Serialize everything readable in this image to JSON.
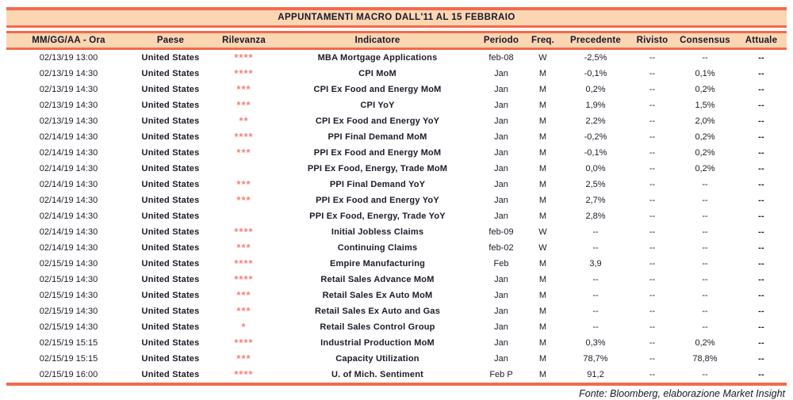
{
  "title": "APPUNTAMENTI MACRO DALL'11 AL 15 FEBBRAIO",
  "footer": "Fonte: Bloomberg, elaborazione Market Insight",
  "colors": {
    "accent_line": "#f4694c",
    "band_background": "#fbd6b2",
    "stars": "#f2837b",
    "text": "#17172b"
  },
  "table": {
    "columns": [
      {
        "key": "date",
        "label": "MM/GG/AA - Ora"
      },
      {
        "key": "paese",
        "label": "Paese"
      },
      {
        "key": "rilevanza",
        "label": "Rilevanza"
      },
      {
        "key": "indicatore",
        "label": "Indicatore"
      },
      {
        "key": "periodo",
        "label": "Periodo"
      },
      {
        "key": "freq",
        "label": "Freq."
      },
      {
        "key": "precedente",
        "label": "Precedente"
      },
      {
        "key": "rivisto",
        "label": "Rivisto"
      },
      {
        "key": "consensus",
        "label": "Consensus"
      },
      {
        "key": "attuale",
        "label": "Attuale"
      }
    ],
    "rows": [
      {
        "date": "02/13/19 13:00",
        "paese": "United States",
        "rilevanza": "****",
        "indicatore": "MBA Mortgage Applications",
        "periodo": "feb-08",
        "freq": "W",
        "precedente": "-2,5%",
        "rivisto": "--",
        "consensus": "--",
        "attuale": "--"
      },
      {
        "date": "02/13/19 14:30",
        "paese": "United States",
        "rilevanza": "****",
        "indicatore": "CPI MoM",
        "periodo": "Jan",
        "freq": "M",
        "precedente": "-0,1%",
        "rivisto": "--",
        "consensus": "0,1%",
        "attuale": "--"
      },
      {
        "date": "02/13/19 14:30",
        "paese": "United States",
        "rilevanza": "***",
        "indicatore": "CPI Ex Food and Energy MoM",
        "periodo": "Jan",
        "freq": "M",
        "precedente": "0,2%",
        "rivisto": "--",
        "consensus": "0,2%",
        "attuale": "--"
      },
      {
        "date": "02/13/19 14:30",
        "paese": "United States",
        "rilevanza": "***",
        "indicatore": "CPI YoY",
        "periodo": "Jan",
        "freq": "M",
        "precedente": "1,9%",
        "rivisto": "--",
        "consensus": "1,5%",
        "attuale": "--"
      },
      {
        "date": "02/13/19 14:30",
        "paese": "United States",
        "rilevanza": "**",
        "indicatore": "CPI Ex Food and Energy YoY",
        "periodo": "Jan",
        "freq": "M",
        "precedente": "2,2%",
        "rivisto": "--",
        "consensus": "2,0%",
        "attuale": "--"
      },
      {
        "date": "02/14/19 14:30",
        "paese": "United States",
        "rilevanza": "****",
        "indicatore": "PPI Final Demand MoM",
        "periodo": "Jan",
        "freq": "M",
        "precedente": "-0,2%",
        "rivisto": "--",
        "consensus": "0,2%",
        "attuale": "--"
      },
      {
        "date": "02/14/19 14:30",
        "paese": "United States",
        "rilevanza": "***",
        "indicatore": "PPI Ex Food and Energy MoM",
        "periodo": "Jan",
        "freq": "M",
        "precedente": "-0,1%",
        "rivisto": "--",
        "consensus": "0,2%",
        "attuale": "--"
      },
      {
        "date": "02/14/19 14:30",
        "paese": "United States",
        "rilevanza": "",
        "indicatore": "PPI Ex Food, Energy, Trade MoM",
        "periodo": "Jan",
        "freq": "M",
        "precedente": "0,0%",
        "rivisto": "--",
        "consensus": "0,2%",
        "attuale": "--"
      },
      {
        "date": "02/14/19 14:30",
        "paese": "United States",
        "rilevanza": "***",
        "indicatore": "PPI Final Demand YoY",
        "periodo": "Jan",
        "freq": "M",
        "precedente": "2,5%",
        "rivisto": "--",
        "consensus": "--",
        "attuale": "--"
      },
      {
        "date": "02/14/19 14:30",
        "paese": "United States",
        "rilevanza": "***",
        "indicatore": "PPI Ex Food and Energy YoY",
        "periodo": "Jan",
        "freq": "M",
        "precedente": "2,7%",
        "rivisto": "--",
        "consensus": "--",
        "attuale": "--"
      },
      {
        "date": "02/14/19 14:30",
        "paese": "United States",
        "rilevanza": "",
        "indicatore": "PPI Ex Food, Energy, Trade YoY",
        "periodo": "Jan",
        "freq": "M",
        "precedente": "2,8%",
        "rivisto": "--",
        "consensus": "--",
        "attuale": "--"
      },
      {
        "date": "02/14/19 14:30",
        "paese": "United States",
        "rilevanza": "****",
        "indicatore": "Initial Jobless Claims",
        "periodo": "feb-09",
        "freq": "W",
        "precedente": "--",
        "rivisto": "--",
        "consensus": "--",
        "attuale": "--"
      },
      {
        "date": "02/14/19 14:30",
        "paese": "United States",
        "rilevanza": "***",
        "indicatore": "Continuing Claims",
        "periodo": "feb-02",
        "freq": "W",
        "precedente": "--",
        "rivisto": "--",
        "consensus": "--",
        "attuale": "--"
      },
      {
        "date": "02/15/19 14:30",
        "paese": "United States",
        "rilevanza": "****",
        "indicatore": "Empire Manufacturing",
        "periodo": "Feb",
        "freq": "M",
        "precedente": "3,9",
        "rivisto": "--",
        "consensus": "--",
        "attuale": "--"
      },
      {
        "date": "02/15/19 14:30",
        "paese": "United States",
        "rilevanza": "****",
        "indicatore": "Retail Sales Advance MoM",
        "periodo": "Jan",
        "freq": "M",
        "precedente": "--",
        "rivisto": "--",
        "consensus": "--",
        "attuale": "--"
      },
      {
        "date": "02/15/19 14:30",
        "paese": "United States",
        "rilevanza": "***",
        "indicatore": "Retail Sales Ex Auto MoM",
        "periodo": "Jan",
        "freq": "M",
        "precedente": "--",
        "rivisto": "--",
        "consensus": "--",
        "attuale": "--"
      },
      {
        "date": "02/15/19 14:30",
        "paese": "United States",
        "rilevanza": "***",
        "indicatore": "Retail Sales Ex Auto and Gas",
        "periodo": "Jan",
        "freq": "M",
        "precedente": "--",
        "rivisto": "--",
        "consensus": "--",
        "attuale": "--"
      },
      {
        "date": "02/15/19 14:30",
        "paese": "United States",
        "rilevanza": "*",
        "indicatore": "Retail Sales Control Group",
        "periodo": "Jan",
        "freq": "M",
        "precedente": "--",
        "rivisto": "--",
        "consensus": "--",
        "attuale": "--"
      },
      {
        "date": "02/15/19 15:15",
        "paese": "United States",
        "rilevanza": "****",
        "indicatore": "Industrial Production MoM",
        "periodo": "Jan",
        "freq": "M",
        "precedente": "0,3%",
        "rivisto": "--",
        "consensus": "0,2%",
        "attuale": "--"
      },
      {
        "date": "02/15/19 15:15",
        "paese": "United States",
        "rilevanza": "***",
        "indicatore": "Capacity Utilization",
        "periodo": "Jan",
        "freq": "M",
        "precedente": "78,7%",
        "rivisto": "--",
        "consensus": "78,8%",
        "attuale": "--"
      },
      {
        "date": "02/15/19 16:00",
        "paese": "United States",
        "rilevanza": "****",
        "indicatore": "U. of Mich. Sentiment",
        "periodo": "Feb P",
        "freq": "M",
        "precedente": "91,2",
        "rivisto": "--",
        "consensus": "--",
        "attuale": "--"
      }
    ]
  }
}
